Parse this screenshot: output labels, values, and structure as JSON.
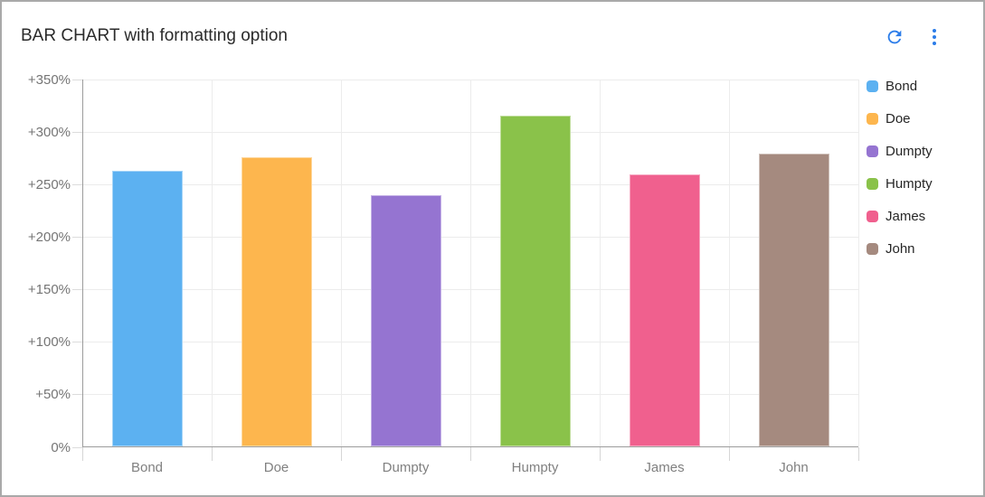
{
  "header": {
    "title": "BAR CHART with formatting option",
    "icon_color": "#2b7ce9",
    "icons": [
      "refresh-icon",
      "kebab-menu-icon"
    ]
  },
  "chart_data": {
    "type": "bar",
    "title": "BAR CHART with formatting option",
    "categories": [
      "Bond",
      "Doe",
      "Dumpty",
      "Humpty",
      "James",
      "John"
    ],
    "series": [
      {
        "name": "Bond",
        "value": 262,
        "color": "#5CB1F1"
      },
      {
        "name": "Doe",
        "value": 275,
        "color": "#FDB64E"
      },
      {
        "name": "Dumpty",
        "value": 239,
        "color": "#9574D1"
      },
      {
        "name": "Humpty",
        "value": 315,
        "color": "#8AC24A"
      },
      {
        "name": "James",
        "value": 259,
        "color": "#F0608E"
      },
      {
        "name": "John",
        "value": 279,
        "color": "#A58A7F"
      }
    ],
    "value_unit": "%",
    "ylim": [
      0,
      350
    ],
    "ytick_step": 50,
    "ytick_labels": [
      "0%",
      "+50%",
      "+100%",
      "+150%",
      "+200%",
      "+250%",
      "+300%",
      "+350%"
    ],
    "xlabel": "",
    "ylabel": "",
    "grid": true,
    "legend_position": "right"
  }
}
